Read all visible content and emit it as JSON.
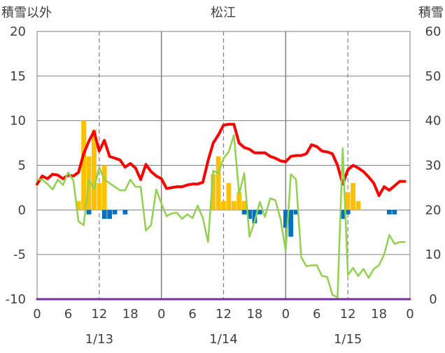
{
  "chart_data": {
    "type": "bar+line",
    "title": "松江",
    "left_axis_label": "積雪以外",
    "right_axis_label": "積雪",
    "left_ylim": [
      -10,
      20
    ],
    "left_yticks": [
      20,
      15,
      10,
      5,
      0,
      -5,
      -10
    ],
    "right_ylim": [
      0,
      60
    ],
    "right_yticks": [
      60,
      50,
      40,
      30,
      20,
      10,
      0
    ],
    "x_range_hours": [
      0,
      72
    ],
    "x_tick_labels": [
      "0",
      "6",
      "12",
      "18",
      "0",
      "6",
      "12",
      "18",
      "0",
      "6",
      "12",
      "18",
      "0"
    ],
    "date_labels": [
      "1/13",
      "1/14",
      "1/15"
    ],
    "grid": "dashed vertical at hour 12 of each day, solid vertical at day boundaries, solid horizontal at each left tick",
    "series": [
      {
        "kind": "line",
        "color": "#ff0000",
        "axis": "left",
        "x": [
          0,
          1,
          2,
          3,
          4,
          5,
          6,
          7,
          8,
          9,
          10,
          11,
          12,
          13,
          14,
          15,
          16,
          17,
          18,
          19,
          20,
          21,
          22,
          23,
          24,
          25,
          26,
          27,
          28,
          29,
          30,
          31,
          32,
          33,
          34,
          35,
          36,
          37,
          38,
          39,
          40,
          41,
          42,
          43,
          44,
          45,
          46,
          47,
          48,
          49,
          50,
          51,
          52,
          53,
          54,
          55,
          56,
          57,
          58,
          59,
          60,
          61,
          62,
          63,
          64,
          65,
          66,
          67,
          68,
          69,
          70,
          71
        ],
        "values": [
          2.9,
          3.8,
          3.5,
          4.0,
          3.9,
          3.5,
          3.9,
          3.8,
          4.2,
          6.3,
          7.7,
          8.8,
          6.6,
          7.8,
          6.0,
          5.8,
          5.6,
          4.8,
          5.2,
          4.7,
          3.4,
          5.1,
          4.3,
          3.8,
          3.5,
          2.4,
          2.5,
          2.6,
          2.6,
          2.8,
          2.9,
          2.9,
          3.1,
          5.5,
          7.5,
          8.4,
          9.5,
          9.6,
          9.6,
          7.5,
          7.0,
          6.8,
          6.4,
          6.4,
          6.4,
          6.0,
          5.8,
          5.5,
          5.4,
          6.0,
          6.1,
          6.1,
          6.3,
          7.3,
          7.1,
          6.6,
          6.5,
          6.3,
          5.0,
          2.9,
          4.5,
          5.0,
          4.7,
          4.3,
          3.7,
          3.0,
          1.6,
          2.6,
          2.2,
          2.7,
          3.2,
          3.2
        ]
      },
      {
        "kind": "line",
        "color": "#92d050",
        "axis": "left",
        "x": [
          0,
          1,
          2,
          3,
          4,
          5,
          6,
          7,
          8,
          9,
          10,
          11,
          12,
          13,
          14,
          15,
          16,
          17,
          18,
          19,
          20,
          21,
          22,
          23,
          24,
          25,
          26,
          27,
          28,
          29,
          30,
          31,
          32,
          33,
          34,
          35,
          36,
          37,
          38,
          39,
          40,
          41,
          42,
          43,
          44,
          45,
          46,
          47,
          48,
          49,
          50,
          51,
          52,
          53,
          54,
          55,
          56,
          57,
          58,
          59,
          60,
          61,
          62,
          63,
          64,
          65,
          66,
          67,
          68,
          69,
          70,
          71
        ],
        "values": [
          3.4,
          3.4,
          2.9,
          2.3,
          3.4,
          2.8,
          4.2,
          3.3,
          -1.3,
          -1.7,
          3.4,
          2.4,
          4.8,
          3.4,
          3.0,
          2.6,
          2.2,
          2.2,
          3.4,
          2.6,
          2.6,
          -2.3,
          -1.7,
          2.3,
          0.7,
          -0.7,
          -0.4,
          -0.3,
          -1.0,
          -0.5,
          -0.9,
          0.5,
          -0.9,
          -3.6,
          4.4,
          4.1,
          5.8,
          6.5,
          8.4,
          1.8,
          4.1,
          -3.0,
          -1.3,
          0.9,
          -0.8,
          1.3,
          1.1,
          -1.0,
          -4.6,
          4.0,
          3.4,
          -5.3,
          -6.3,
          -6.2,
          -6.2,
          -7.4,
          -7.5,
          -9.5,
          -9.8,
          6.9,
          -7.3,
          -6.5,
          -7.4,
          -6.6,
          -7.6,
          -6.6,
          -6.2,
          -5.0,
          -2.8,
          -3.8,
          -3.6,
          -3.6
        ]
      },
      {
        "kind": "line",
        "color": "#7030a0",
        "axis": "left",
        "x": [
          0,
          72
        ],
        "values": [
          -10,
          -10
        ]
      },
      {
        "kind": "bar",
        "color": "#ffc000",
        "axis": "left",
        "x": [
          8,
          9,
          10,
          11,
          12,
          13,
          34,
          35,
          36,
          37,
          38,
          39,
          40,
          60,
          61,
          62
        ],
        "values": [
          1,
          10,
          6,
          9,
          3,
          5,
          4,
          6,
          1,
          3,
          1,
          2,
          1,
          2,
          3,
          1
        ]
      },
      {
        "kind": "bar",
        "color": "#0070c0",
        "axis": "left",
        "x": [
          10,
          13,
          14,
          15,
          17,
          40,
          41,
          42,
          43,
          48,
          49,
          50,
          59,
          60,
          68,
          69
        ],
        "values": [
          -0.5,
          -1,
          -1,
          -0.5,
          -0.5,
          -0.5,
          -1,
          -1.5,
          -0.5,
          -2,
          -3,
          -0.5,
          -1,
          -0.5,
          -0.5,
          -0.5
        ]
      }
    ]
  }
}
